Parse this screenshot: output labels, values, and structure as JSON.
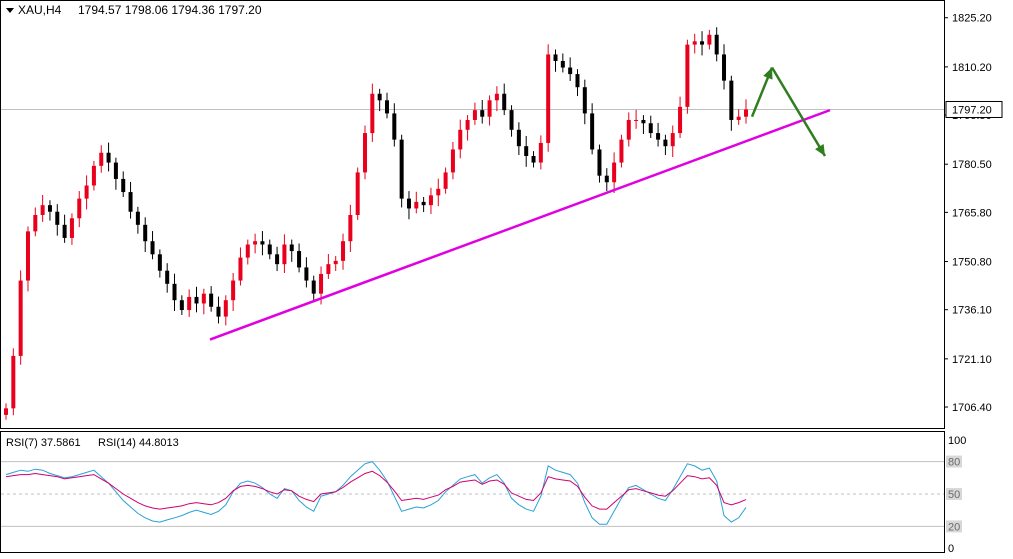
{
  "header": {
    "symbol": "XAU,H4",
    "ohlc": "1794.57 1798.06 1794.36 1797.20"
  },
  "rsi_header": {
    "rsi7": "RSI(7) 37.5861",
    "rsi14": "RSI(14) 44.8013"
  },
  "colors": {
    "background": "#ffffff",
    "frame": "#000000",
    "bull_candle": "#e8001c",
    "bear_candle": "#000000",
    "trendline": "#e000e0",
    "arrow": "#2e7d1f",
    "rsi7": "#2aa0d8",
    "rsi14": "#d0006e",
    "price_marker_bg": "#ffffff",
    "level_line": "#c0c0c0"
  },
  "chart_data": [
    {
      "type": "candlestick",
      "title": "XAU,H4",
      "ylim": [
        1700,
        1830
      ],
      "yticks": [
        "1825.20",
        "1810.20",
        "1795.50",
        "1780.50",
        "1765.80",
        "1750.80",
        "1736.10",
        "1721.10",
        "1706.40"
      ],
      "ytick_values": [
        1825.2,
        1810.2,
        1795.5,
        1780.5,
        1765.8,
        1750.8,
        1736.1,
        1721.1,
        1706.4
      ],
      "current_price": "1797.20",
      "current_price_value": 1797.2,
      "candle_closes": [
        1706,
        1722,
        1745,
        1760,
        1765,
        1768,
        1766,
        1762,
        1758,
        1764,
        1770,
        1774,
        1780,
        1784,
        1781,
        1776,
        1772,
        1766,
        1762,
        1757,
        1753,
        1748,
        1744,
        1739,
        1736,
        1740,
        1738,
        1741,
        1737,
        1734,
        1739,
        1745,
        1752,
        1756,
        1757,
        1756,
        1753,
        1750,
        1756,
        1754,
        1749,
        1745,
        1741,
        1747,
        1750,
        1751,
        1757,
        1765,
        1778,
        1790,
        1802,
        1800,
        1796,
        1788,
        1770,
        1767,
        1769,
        1768,
        1771,
        1773,
        1778,
        1785,
        1791,
        1794,
        1797,
        1795,
        1800,
        1802,
        1797,
        1791,
        1786,
        1783,
        1781,
        1787,
        1814,
        1812,
        1810,
        1808,
        1804,
        1796,
        1785,
        1777,
        1775,
        1781,
        1788,
        1794,
        1794,
        1793,
        1790,
        1788,
        1786,
        1790,
        1798,
        1817,
        1818,
        1817,
        1820,
        1814,
        1806,
        1794,
        1795,
        1797.2
      ],
      "trendline": {
        "from": [
          1727,
          1
        ],
        "to": [
          1797,
          101
        ],
        "note": "x given as candle index"
      },
      "arrows": [
        {
          "from_index": 101,
          "from_price": 1795,
          "to_index": 106,
          "to_price": 1810
        },
        {
          "from_index": 106,
          "from_price": 1810,
          "to_index": 113,
          "to_price": 1783
        }
      ]
    },
    {
      "type": "line",
      "title": "RSI",
      "ylim": [
        0,
        100
      ],
      "yticks": [
        "100",
        "80",
        "50",
        "20",
        "0"
      ],
      "ytick_values": [
        100,
        80,
        50,
        20,
        0
      ],
      "levels": [
        80,
        50,
        20
      ],
      "series": [
        {
          "name": "RSI(7)",
          "values": [
            68,
            70,
            72,
            71,
            73,
            72,
            69,
            67,
            65,
            66,
            68,
            70,
            72,
            66,
            60,
            52,
            44,
            38,
            32,
            28,
            25,
            24,
            26,
            28,
            30,
            33,
            35,
            33,
            31,
            34,
            40,
            52,
            60,
            62,
            60,
            56,
            50,
            46,
            55,
            53,
            44,
            38,
            34,
            48,
            50,
            52,
            58,
            66,
            72,
            78,
            80,
            72,
            62,
            48,
            34,
            36,
            38,
            37,
            40,
            44,
            52,
            58,
            64,
            66,
            68,
            60,
            65,
            68,
            60,
            46,
            40,
            36,
            34,
            48,
            76,
            72,
            70,
            68,
            60,
            42,
            28,
            22,
            22,
            34,
            46,
            56,
            58,
            54,
            50,
            46,
            44,
            54,
            66,
            78,
            76,
            72,
            74,
            62,
            30,
            24,
            28,
            37.6
          ]
        },
        {
          "name": "RSI(14)",
          "values": [
            66,
            67,
            68,
            68,
            69,
            68,
            67,
            66,
            64,
            65,
            66,
            67,
            68,
            64,
            60,
            55,
            50,
            46,
            42,
            39,
            37,
            36,
            37,
            38,
            39,
            41,
            42,
            41,
            40,
            42,
            46,
            53,
            57,
            58,
            57,
            55,
            52,
            50,
            54,
            53,
            48,
            45,
            43,
            50,
            51,
            52,
            56,
            61,
            65,
            69,
            71,
            67,
            61,
            53,
            44,
            45,
            46,
            45,
            47,
            49,
            54,
            57,
            61,
            62,
            63,
            59,
            62,
            63,
            59,
            51,
            48,
            45,
            44,
            51,
            66,
            64,
            63,
            62,
            57,
            47,
            39,
            36,
            36,
            42,
            48,
            54,
            55,
            53,
            51,
            49,
            48,
            53,
            60,
            67,
            66,
            64,
            65,
            58,
            42,
            40,
            42,
            44.8
          ]
        }
      ]
    }
  ]
}
